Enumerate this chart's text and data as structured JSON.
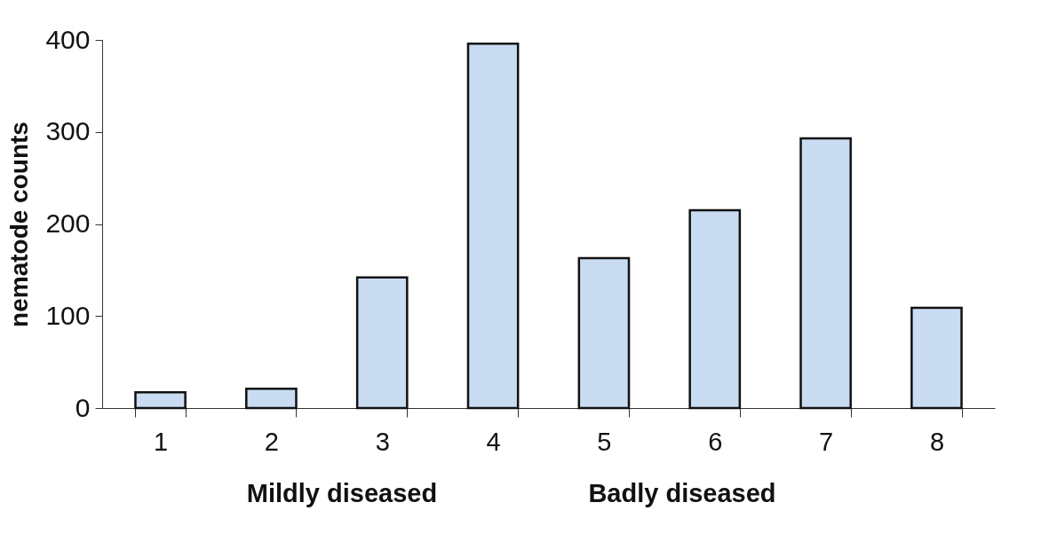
{
  "chart_data": {
    "type": "bar",
    "ylabel": "nematode counts",
    "categories": [
      "1",
      "2",
      "3",
      "4",
      "5",
      "6",
      "7",
      "8"
    ],
    "values": [
      17,
      21,
      142,
      396,
      163,
      215,
      293,
      109
    ],
    "color": "#c9dcf2",
    "ylim": [
      0,
      400
    ],
    "yticks": [
      0,
      100,
      200,
      300,
      400
    ],
    "grid": false,
    "annotations": [
      "Mildly diseased",
      "Badly diseased"
    ]
  }
}
